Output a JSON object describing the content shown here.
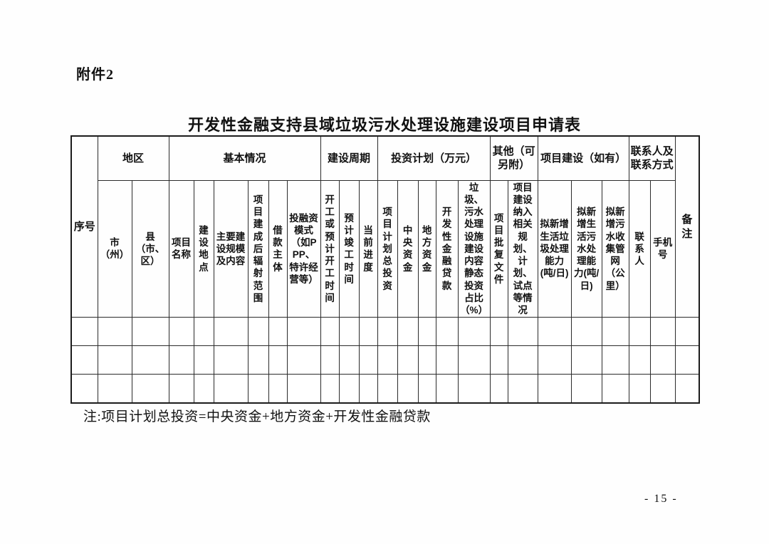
{
  "page": {
    "attachment_label": "附件2",
    "note": "注:项目计划总投资=中央资金+地方资金+开发性金融贷款",
    "page_number": "- 15 -"
  },
  "table": {
    "title": "开发性金融支持县域垃圾污水处理设施建设项目申请表",
    "groups": {
      "seq": "序号",
      "region": "地区",
      "basic_info": "基本情况",
      "construction_period": "建设周期",
      "investment_plan": "投资计划（万元）",
      "other": "其他（可另附）",
      "project_build": "项目建设（如有）",
      "contact": "联系人及联系方式",
      "remark": "备注"
    },
    "columns": [
      "市（州）",
      "县（市、区）",
      "项目名称",
      "建设地点",
      "主要建设规模及内容",
      "项目建成后辐射范围",
      "借款主体",
      "投融资模式（如PPP、特许经营等）",
      "开工或预计开工时间",
      "预计竣工时间",
      "当前进度",
      "项目计划总投资",
      "中央资金",
      "地方资金",
      "开发性金融贷款",
      "垃圾、污水处理设施建设内容静态投资占比（%）",
      "项目批复文件",
      "项目建设纳入相关规划、计划、试点等情况",
      "拟新增生活垃圾处理能力(吨/日)",
      "拟新增生活污水处理能力(吨/日)",
      "拟新增污水收集管网（公里）",
      "联系人",
      "手机号"
    ],
    "data_rows": [
      [
        "",
        "",
        "",
        "",
        "",
        "",
        "",
        "",
        "",
        "",
        "",
        "",
        "",
        "",
        "",
        "",
        "",
        "",
        "",
        "",
        "",
        "",
        "",
        "",
        ""
      ],
      [
        "",
        "",
        "",
        "",
        "",
        "",
        "",
        "",
        "",
        "",
        "",
        "",
        "",
        "",
        "",
        "",
        "",
        "",
        "",
        "",
        "",
        "",
        "",
        "",
        ""
      ],
      [
        "",
        "",
        "",
        "",
        "",
        "",
        "",
        "",
        "",
        "",
        "",
        "",
        "",
        "",
        "",
        "",
        "",
        "",
        "",
        "",
        "",
        "",
        "",
        "",
        ""
      ]
    ]
  }
}
